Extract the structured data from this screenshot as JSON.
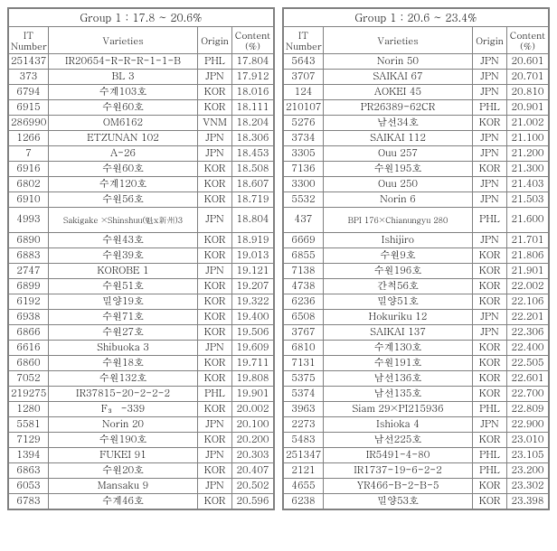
{
  "left": {
    "title": "Group 1 : 17.8 ~ 20.6%",
    "headers": {
      "it": "IT Number",
      "var": "Varieties",
      "org": "Origin",
      "cnt": "Content (%)"
    },
    "rows": [
      {
        "it": "251437",
        "var": "IR20654-R-R-R-1-1-B",
        "org": "PHL",
        "cnt": "17.804"
      },
      {
        "it": "373",
        "var": "BL 3",
        "org": "JPN",
        "cnt": "17.912"
      },
      {
        "it": "6794",
        "var": "수계103호",
        "org": "KOR",
        "cnt": "18.016"
      },
      {
        "it": "6915",
        "var": "수원60호",
        "org": "KOR",
        "cnt": "18.111"
      },
      {
        "it": "286990",
        "var": "OM6162",
        "org": "VNM",
        "cnt": "18.204"
      },
      {
        "it": "1266",
        "var": "ETZUNAN 102",
        "org": "JPN",
        "cnt": "18.306"
      },
      {
        "it": "7",
        "var": "A-26",
        "org": "JPN",
        "cnt": "18.453"
      },
      {
        "it": "6916",
        "var": "수원60호",
        "org": "KOR",
        "cnt": "18.508"
      },
      {
        "it": "6802",
        "var": "수계120호",
        "org": "KOR",
        "cnt": "18.607"
      },
      {
        "it": "6910",
        "var": "수원56호",
        "org": "KOR",
        "cnt": "18.719"
      },
      {
        "it": "4993",
        "var": "Sakigake ×Shinshuu(魁x新州)3",
        "org": "JPN",
        "cnt": "18.804",
        "wrap": true
      },
      {
        "it": "6890",
        "var": "수원43호",
        "org": "KOR",
        "cnt": "18.919"
      },
      {
        "it": "6883",
        "var": "수원39호",
        "org": "KOR",
        "cnt": "19.013"
      },
      {
        "it": "2747",
        "var": "KOROBE 1",
        "org": "JPN",
        "cnt": "19.121"
      },
      {
        "it": "6899",
        "var": "수원51호",
        "org": "KOR",
        "cnt": "19.207"
      },
      {
        "it": "6192",
        "var": "밀양19호",
        "org": "KOR",
        "cnt": "19.322"
      },
      {
        "it": "6938",
        "var": "수원71호",
        "org": "KOR",
        "cnt": "19.400"
      },
      {
        "it": "6866",
        "var": "수원27호",
        "org": "KOR",
        "cnt": "19.506"
      },
      {
        "it": "6616",
        "var": "Shibuoka 3",
        "org": "JPN",
        "cnt": "19.609"
      },
      {
        "it": "6860",
        "var": "수원18호",
        "org": "KOR",
        "cnt": "19.711"
      },
      {
        "it": "7052",
        "var": "수원132호",
        "org": "KOR",
        "cnt": "19.808"
      },
      {
        "it": "219275",
        "var": "IR37815-20-2-2-2",
        "org": "PHL",
        "cnt": "19.901"
      },
      {
        "it": "1280",
        "var": "F₃ -339",
        "org": "KOR",
        "cnt": "20.002"
      },
      {
        "it": "5581",
        "var": "Norin 20",
        "org": "JPN",
        "cnt": "20.100"
      },
      {
        "it": "7129",
        "var": "수원190호",
        "org": "KOR",
        "cnt": "20.200"
      },
      {
        "it": "1394",
        "var": "FUKEI 91",
        "org": "JPN",
        "cnt": "20.303"
      },
      {
        "it": "6863",
        "var": "수원20호",
        "org": "KOR",
        "cnt": "20.407"
      },
      {
        "it": "6053",
        "var": "Mansaku 9",
        "org": "JPN",
        "cnt": "20.502"
      },
      {
        "it": "6783",
        "var": "수계46호",
        "org": "KOR",
        "cnt": "20.596"
      }
    ]
  },
  "right": {
    "title": "Group 1 : 20.6 ~ 23.4%",
    "headers": {
      "it": "IT Number",
      "var": "Varieties",
      "org": "Origin",
      "cnt": "Content (%)"
    },
    "rows": [
      {
        "it": "5643",
        "var": "Norin 50",
        "org": "JPN",
        "cnt": "20.601"
      },
      {
        "it": "3707",
        "var": "SAIKAI 67",
        "org": "JPN",
        "cnt": "20.701"
      },
      {
        "it": "124",
        "var": "AOKEI 45",
        "org": "JPN",
        "cnt": "20.810"
      },
      {
        "it": "210107",
        "var": "PR26389-62CR",
        "org": "PHL",
        "cnt": "20.901"
      },
      {
        "it": "5276",
        "var": "남선34호",
        "org": "KOR",
        "cnt": "21.002"
      },
      {
        "it": "3734",
        "var": "SAIKAI 112",
        "org": "JPN",
        "cnt": "21.100"
      },
      {
        "it": "3305",
        "var": "Ouu 257",
        "org": "JPN",
        "cnt": "21.200"
      },
      {
        "it": "7136",
        "var": "수원195호",
        "org": "KOR",
        "cnt": "21.300"
      },
      {
        "it": "3300",
        "var": "Ouu 250",
        "org": "JPN",
        "cnt": "21.403"
      },
      {
        "it": "5532",
        "var": "Norin 6",
        "org": "JPN",
        "cnt": "21.503"
      },
      {
        "it": "437",
        "var": "BPI 176×Chianungyu 280",
        "org": "PHL",
        "cnt": "21.600",
        "wrap": true
      },
      {
        "it": "6669",
        "var": "Ishijiro",
        "org": "JPN",
        "cnt": "21.701"
      },
      {
        "it": "6855",
        "var": "수원9호",
        "org": "KOR",
        "cnt": "21.806"
      },
      {
        "it": "7138",
        "var": "수원196호",
        "org": "KOR",
        "cnt": "21.901"
      },
      {
        "it": "4738",
        "var": "간척56호",
        "org": "KOR",
        "cnt": "22.002"
      },
      {
        "it": "6236",
        "var": "밀양51호",
        "org": "KOR",
        "cnt": "22.106"
      },
      {
        "it": "6508",
        "var": "Hokuriku 12",
        "org": "JPN",
        "cnt": "22.201"
      },
      {
        "it": "3767",
        "var": "SAIKAI 137",
        "org": "JPN",
        "cnt": "22.306"
      },
      {
        "it": "6810",
        "var": "수계130호",
        "org": "KOR",
        "cnt": "22.400"
      },
      {
        "it": "7131",
        "var": "수원191호",
        "org": "KOR",
        "cnt": "22.505"
      },
      {
        "it": "5375",
        "var": "남선136호",
        "org": "KOR",
        "cnt": "22.601"
      },
      {
        "it": "5374",
        "var": "남선135호",
        "org": "KOR",
        "cnt": "22.700"
      },
      {
        "it": "3963",
        "var": "Siam 29×PI215936",
        "org": "PHL",
        "cnt": "22.809"
      },
      {
        "it": "2273",
        "var": "Ishioka 4",
        "org": "JPN",
        "cnt": "22.900"
      },
      {
        "it": "5483",
        "var": "남선225호",
        "org": "KOR",
        "cnt": "23.010"
      },
      {
        "it": "251347",
        "var": "IR5491-4-80",
        "org": "PHL",
        "cnt": "23.105"
      },
      {
        "it": "2121",
        "var": "IR1737-19-6-2-2",
        "org": "PHL",
        "cnt": "23.200"
      },
      {
        "it": "4655",
        "var": "YR466-B-2-B-5",
        "org": "KOR",
        "cnt": "23.302"
      },
      {
        "it": "6238",
        "var": "밀양53호",
        "org": "KOR",
        "cnt": "23.398"
      }
    ]
  }
}
